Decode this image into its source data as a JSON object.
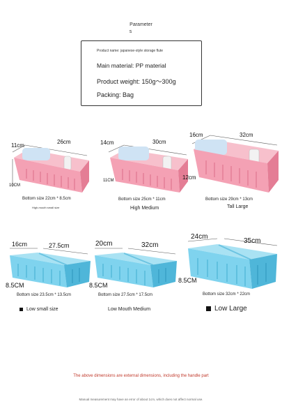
{
  "header": {
    "title_line1": "Parameter",
    "title_line2": "s"
  },
  "params": {
    "product_name": "Product name: japanese-style storage flute",
    "material": "Main material: PP material",
    "weight": "Product weight: 150g～300g",
    "packing": "Packing: Bag"
  },
  "pink_row": [
    {
      "top_a": "11cm",
      "top_b": "26cm",
      "side": "10CM",
      "bottom_size": "Bottom size 22cm * 8.5cm",
      "caption": "High-mouth small size"
    },
    {
      "top_a": "14cm",
      "top_b": "30cm",
      "side": "11CM",
      "bottom_size": "Bottom size 25cm * 11cm",
      "caption": "High Medium"
    },
    {
      "top_a": "16cm",
      "top_b": "32cm",
      "side": "12cm",
      "bottom_size": "Bottom size 29cm * 13cm",
      "caption": "Tall Large"
    }
  ],
  "blue_row": [
    {
      "top_a": "16cm",
      "top_b": "27.5cm",
      "side": "8.5CM",
      "bottom_size": "Bottom size 23.5cm * 13.5cm",
      "caption": "Low small size"
    },
    {
      "top_a": "20cm",
      "top_b": "32cm",
      "side": "8.5CM",
      "bottom_size": "Bottom size 27.5cm * 17.5cm",
      "caption": "Low Mouth Medium"
    },
    {
      "top_a": "24cm",
      "top_b": "35cm",
      "side": "8.5CM",
      "bottom_size": "Bottom size 32cm * 22cm",
      "caption": "Low Large"
    }
  ],
  "notes": {
    "external": "The above dimensions are external dimensions, including the handle part",
    "manual": "Manual measurement may have an error of about 1cm, which does not affect normal use."
  },
  "colors": {
    "pink": "#f4a1b4",
    "pink_dark": "#e47d95",
    "blue": "#7fd3ee",
    "blue_dark": "#4fb6d9",
    "note_red": "#c0392b"
  }
}
